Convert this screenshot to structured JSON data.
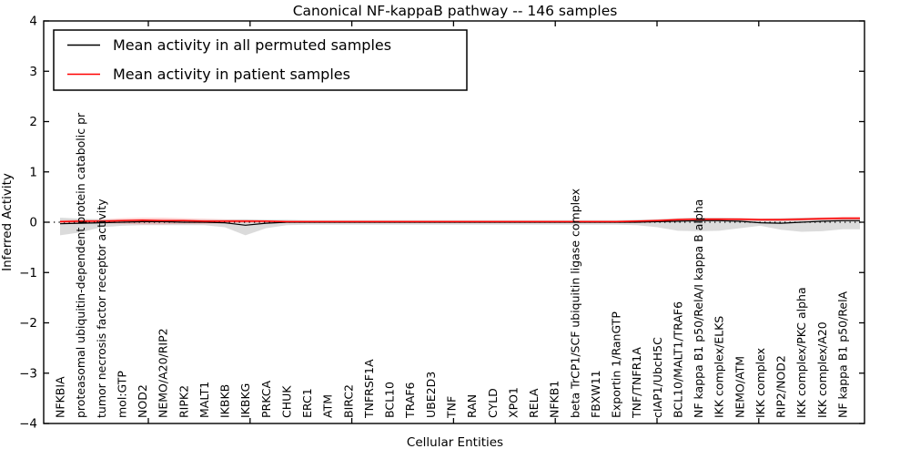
{
  "title": "Canonical NF-kappaB pathway -- 146 samples",
  "legend": {
    "entries": [
      {
        "label": "Mean activity in all permuted samples",
        "color": "#000000"
      },
      {
        "label": "Mean activity in patient samples",
        "color": "#ff0000"
      }
    ],
    "position": "upper left"
  },
  "chart_data": {
    "type": "line",
    "title": "Canonical NF-kappaB pathway -- 146 samples",
    "xlabel": "Cellular Entities",
    "ylabel": "Inferred Activity",
    "ylim": [
      -4,
      4
    ],
    "ytick_values": [
      4,
      3,
      2,
      1,
      0,
      -1,
      -2,
      -3,
      -4
    ],
    "ytick_labels": [
      "4",
      "3",
      "2",
      "1",
      "0",
      "−1",
      "−2",
      "−3",
      "−4"
    ],
    "grid": false,
    "zero_line": {
      "style": "dotted",
      "color": "#000000",
      "y": 0
    },
    "legend_position": "upper left",
    "categories": [
      "NFKBIA",
      "proteasomal ubiquitin-dependent protein catabolic pr",
      "tumor necrosis factor receptor activity",
      "mol:GTP",
      "NOD2",
      "NEMO/A20/RIP2",
      "RIPK2",
      "MALT1",
      "IKBKB",
      "IKBKG",
      "PRKCA",
      "CHUK",
      "ERC1",
      "ATM",
      "BIRC2",
      "TNFRSF1A",
      "BCL10",
      "TRAF6",
      "UBE2D3",
      "TNF",
      "RAN",
      "CYLD",
      "XPO1",
      "RELA",
      "NFKB1",
      "beta TrCP1/SCF ubiquitin ligase complex",
      "FBXW11",
      "Exportin 1/RanGTP",
      "TNF/TNFR1A",
      "cIAP1/UbcH5C",
      "BCL10/MALT1/TRAF6",
      "NF kappa B1 p50/RelA/I kappa B alpha",
      "IKK complex/ELKS",
      "NEMO/ATM",
      "IKK complex",
      "RIP2/NOD2",
      "IKK complex/PKC alpha",
      "IKK complex/A20",
      "NF kappa B1 p50/RelA"
    ],
    "series": [
      {
        "name": "Mean activity in all permuted samples",
        "color": "#000000",
        "width": 1.2,
        "values": [
          -0.03,
          -0.02,
          -0.01,
          0.0,
          0.01,
          0.01,
          0.0,
          0.0,
          -0.01,
          -0.06,
          -0.02,
          0.0,
          0.0,
          0.0,
          0.0,
          0.0,
          0.0,
          0.0,
          0.0,
          0.0,
          0.0,
          0.0,
          0.0,
          0.0,
          0.0,
          0.0,
          0.0,
          0.0,
          0.0,
          0.01,
          0.02,
          0.03,
          0.03,
          0.02,
          -0.01,
          -0.02,
          0.0,
          0.02,
          0.03
        ]
      },
      {
        "name": "Mean activity in patient samples",
        "color": "#ff0000",
        "width": 1.5,
        "values": [
          0.01,
          0.02,
          0.02,
          0.03,
          0.04,
          0.03,
          0.03,
          0.02,
          0.02,
          0.02,
          0.02,
          0.01,
          0.01,
          0.01,
          0.01,
          0.01,
          0.01,
          0.01,
          0.01,
          0.01,
          0.01,
          0.01,
          0.01,
          0.01,
          0.01,
          0.01,
          0.01,
          0.01,
          0.02,
          0.03,
          0.05,
          0.06,
          0.06,
          0.06,
          0.05,
          0.05,
          0.06,
          0.07,
          0.08
        ]
      }
    ],
    "bands": [
      {
        "name": "permuted-samples-range",
        "color": "#b8b8b8",
        "opacity": 0.5,
        "low": [
          -0.26,
          -0.2,
          -0.1,
          -0.07,
          -0.06,
          -0.06,
          -0.06,
          -0.06,
          -0.1,
          -0.26,
          -0.12,
          -0.06,
          -0.05,
          -0.05,
          -0.05,
          -0.05,
          -0.05,
          -0.05,
          -0.05,
          -0.05,
          -0.05,
          -0.05,
          -0.05,
          -0.05,
          -0.05,
          -0.05,
          -0.05,
          -0.05,
          -0.06,
          -0.1,
          -0.17,
          -0.18,
          -0.17,
          -0.12,
          -0.07,
          -0.15,
          -0.19,
          -0.18,
          -0.14
        ],
        "high": [
          0.09,
          0.07,
          0.06,
          0.05,
          0.05,
          0.05,
          0.05,
          0.05,
          0.05,
          0.06,
          0.05,
          0.05,
          0.04,
          0.04,
          0.04,
          0.04,
          0.04,
          0.04,
          0.04,
          0.04,
          0.04,
          0.04,
          0.04,
          0.04,
          0.04,
          0.04,
          0.04,
          0.04,
          0.05,
          0.06,
          0.08,
          0.09,
          0.09,
          0.08,
          0.07,
          0.08,
          0.09,
          0.09,
          0.09
        ]
      },
      {
        "name": "patient-samples-range",
        "color": "#ff5050",
        "opacity": 0.25,
        "low": [
          -0.02,
          -0.02,
          -0.02,
          -0.03,
          -0.04,
          -0.04,
          -0.03,
          -0.03,
          -0.02,
          -0.01,
          -0.01,
          0.0,
          0.0,
          0.0,
          0.0,
          0.0,
          0.0,
          0.0,
          0.0,
          0.0,
          0.0,
          0.0,
          0.0,
          0.0,
          0.0,
          0.0,
          0.0,
          0.0,
          0.0,
          0.01,
          0.02,
          0.03,
          0.03,
          0.03,
          0.02,
          0.02,
          0.03,
          0.04,
          0.04
        ],
        "high": [
          0.04,
          0.05,
          0.06,
          0.08,
          0.09,
          0.09,
          0.08,
          0.07,
          0.06,
          0.05,
          0.04,
          0.03,
          0.03,
          0.03,
          0.03,
          0.03,
          0.03,
          0.03,
          0.03,
          0.03,
          0.03,
          0.03,
          0.03,
          0.03,
          0.03,
          0.03,
          0.03,
          0.03,
          0.04,
          0.06,
          0.08,
          0.09,
          0.09,
          0.09,
          0.08,
          0.08,
          0.09,
          0.1,
          0.11
        ]
      }
    ]
  }
}
